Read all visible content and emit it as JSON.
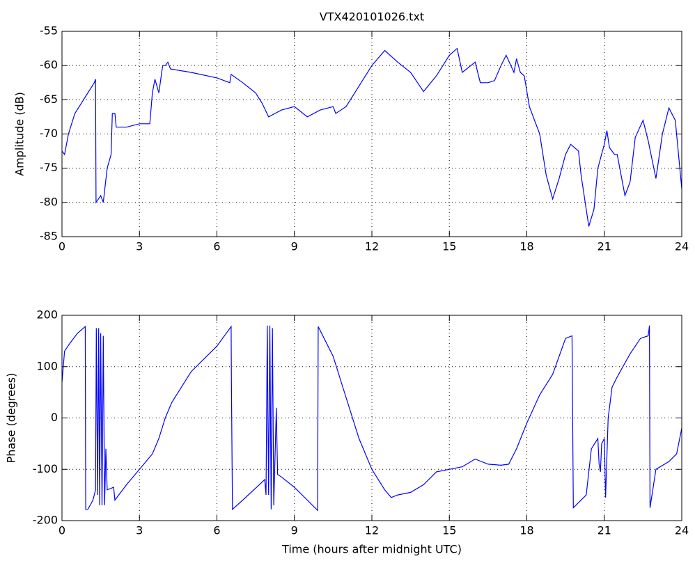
{
  "chart_data": [
    {
      "type": "line",
      "title": "VTX420101026.txt",
      "ylabel": "Amplitude (dB)",
      "color": "#0000ff",
      "grid": true,
      "xlim": [
        0,
        24
      ],
      "xticks": [
        0,
        3,
        6,
        9,
        12,
        15,
        18,
        21,
        24
      ],
      "ylim": [
        -85,
        -55
      ],
      "yticks": [
        -85,
        -80,
        -75,
        -70,
        -65,
        -60,
        -55
      ],
      "x": [
        0,
        0.1,
        0.25,
        0.5,
        0.75,
        1.0,
        1.25,
        1.3,
        1.32,
        1.5,
        1.6,
        1.75,
        1.9,
        1.95,
        2.05,
        2.1,
        2.5,
        3.0,
        3.4,
        3.5,
        3.6,
        3.75,
        3.9,
        4.0,
        4.1,
        4.2,
        5.0,
        6.0,
        6.5,
        6.55,
        7.0,
        7.5,
        7.75,
        8.0,
        8.25,
        8.5,
        9.0,
        9.5,
        10.0,
        10.5,
        10.6,
        11.0,
        11.5,
        12.0,
        12.5,
        13.0,
        13.5,
        14.0,
        14.5,
        15.0,
        15.3,
        15.5,
        16.0,
        16.2,
        16.5,
        16.75,
        17.0,
        17.2,
        17.5,
        17.6,
        17.75,
        17.9,
        18.1,
        18.5,
        18.75,
        19.0,
        19.25,
        19.5,
        19.7,
        20.0,
        20.1,
        20.4,
        20.6,
        20.75,
        21.0,
        21.1,
        21.2,
        21.4,
        21.5,
        21.8,
        22.0,
        22.2,
        22.5,
        22.7,
        23.0,
        23.25,
        23.5,
        23.75,
        24.0
      ],
      "values": [
        -72.5,
        -73,
        -70,
        -67,
        -65.5,
        -64,
        -62.5,
        -62,
        -80,
        -79,
        -80,
        -75,
        -73,
        -67,
        -67,
        -69,
        -69,
        -68.5,
        -68.5,
        -64,
        -62,
        -64,
        -60,
        -60,
        -59.5,
        -60.5,
        -61,
        -61.8,
        -62.5,
        -61.3,
        -62.5,
        -64,
        -65.5,
        -67.5,
        -67,
        -66.5,
        -66,
        -67.5,
        -66.5,
        -66,
        -67,
        -66,
        -63,
        -60,
        -57.8,
        -59.5,
        -61,
        -63.8,
        -61.5,
        -58.5,
        -57.5,
        -61,
        -59.5,
        -62.5,
        -62.5,
        -62.2,
        -60,
        -58.5,
        -61,
        -59,
        -61,
        -61.5,
        -66,
        -70,
        -76,
        -79.5,
        -76.5,
        -73,
        -71.5,
        -72.5,
        -76,
        -83.5,
        -81,
        -75,
        -71.5,
        -69.5,
        -72,
        -73,
        -73,
        -79,
        -77,
        -70.5,
        -68,
        -71,
        -76.5,
        -70,
        -66.2,
        -68,
        -78
      ]
    },
    {
      "type": "line",
      "ylabel": "Phase (degrees)",
      "xlabel": "Time (hours after midnight UTC)",
      "color": "#0000ff",
      "grid": true,
      "xlim": [
        0,
        24
      ],
      "xticks": [
        0,
        3,
        6,
        9,
        12,
        15,
        18,
        21,
        24
      ],
      "ylim": [
        -200,
        200
      ],
      "yticks": [
        -200,
        -100,
        0,
        100,
        200
      ],
      "x": [
        0,
        0.1,
        0.3,
        0.6,
        0.9,
        0.92,
        1.0,
        1.2,
        1.3,
        1.33,
        1.38,
        1.42,
        1.46,
        1.5,
        1.55,
        1.6,
        1.65,
        1.7,
        1.75,
        2.0,
        2.05,
        2.5,
        3.0,
        3.5,
        3.75,
        4.0,
        4.25,
        5.0,
        6.0,
        6.55,
        6.56,
        6.6,
        7.0,
        7.75,
        7.85,
        7.9,
        7.95,
        8.0,
        8.05,
        8.1,
        8.15,
        8.2,
        8.3,
        8.35,
        8.5,
        9.0,
        9.5,
        9.9,
        9.92,
        10.5,
        11.0,
        11.5,
        12.0,
        12.5,
        12.75,
        13.0,
        13.5,
        14.0,
        14.5,
        15.0,
        15.5,
        16.0,
        16.5,
        17.0,
        17.3,
        17.6,
        18.0,
        18.5,
        19.0,
        19.5,
        19.75,
        19.8,
        20.0,
        20.3,
        20.5,
        20.75,
        20.8,
        20.85,
        20.9,
        21.0,
        21.05,
        21.15,
        21.3,
        21.5,
        22.0,
        22.4,
        22.7,
        22.75,
        22.77,
        23.0,
        23.5,
        23.8,
        24.0
      ],
      "values": [
        70,
        130,
        145,
        165,
        178,
        -178,
        -178,
        -160,
        -140,
        175,
        -150,
        175,
        -170,
        165,
        -170,
        160,
        -170,
        -60,
        -140,
        -135,
        -160,
        -130,
        -100,
        -70,
        -40,
        0,
        30,
        90,
        140,
        178,
        70,
        -178,
        -160,
        -125,
        -120,
        -150,
        180,
        -150,
        180,
        -178,
        175,
        -170,
        20,
        -110,
        -115,
        -135,
        -160,
        -180,
        178,
        120,
        40,
        -40,
        -100,
        -140,
        -155,
        -150,
        -145,
        -130,
        -105,
        -100,
        -95,
        -80,
        -90,
        -92,
        -90,
        -60,
        -10,
        45,
        85,
        155,
        160,
        -175,
        -165,
        -150,
        -60,
        -40,
        -90,
        -105,
        -50,
        -40,
        -155,
        0,
        60,
        80,
        125,
        155,
        160,
        180,
        -175,
        -100,
        -85,
        -70,
        -20
      ]
    }
  ]
}
